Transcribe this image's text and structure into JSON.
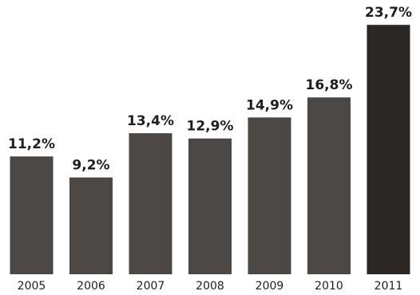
{
  "chart_data": {
    "type": "bar",
    "title": "",
    "xlabel": "",
    "ylabel": "",
    "categories": [
      "2005",
      "2006",
      "2007",
      "2008",
      "2009",
      "2010",
      "2011"
    ],
    "values": [
      11.2,
      9.2,
      13.4,
      12.9,
      14.9,
      16.8,
      23.7
    ],
    "value_labels": [
      "11,2%",
      "9,2%",
      "13,4%",
      "12,9%",
      "14,9%",
      "16,8%",
      "23,7%"
    ],
    "ylim": [
      0,
      23.7
    ],
    "grid": false,
    "legend": "none",
    "colors": {
      "bar": "#4a4744",
      "highlight_bar": "#2a2725",
      "text": "#1e1e1e"
    }
  }
}
